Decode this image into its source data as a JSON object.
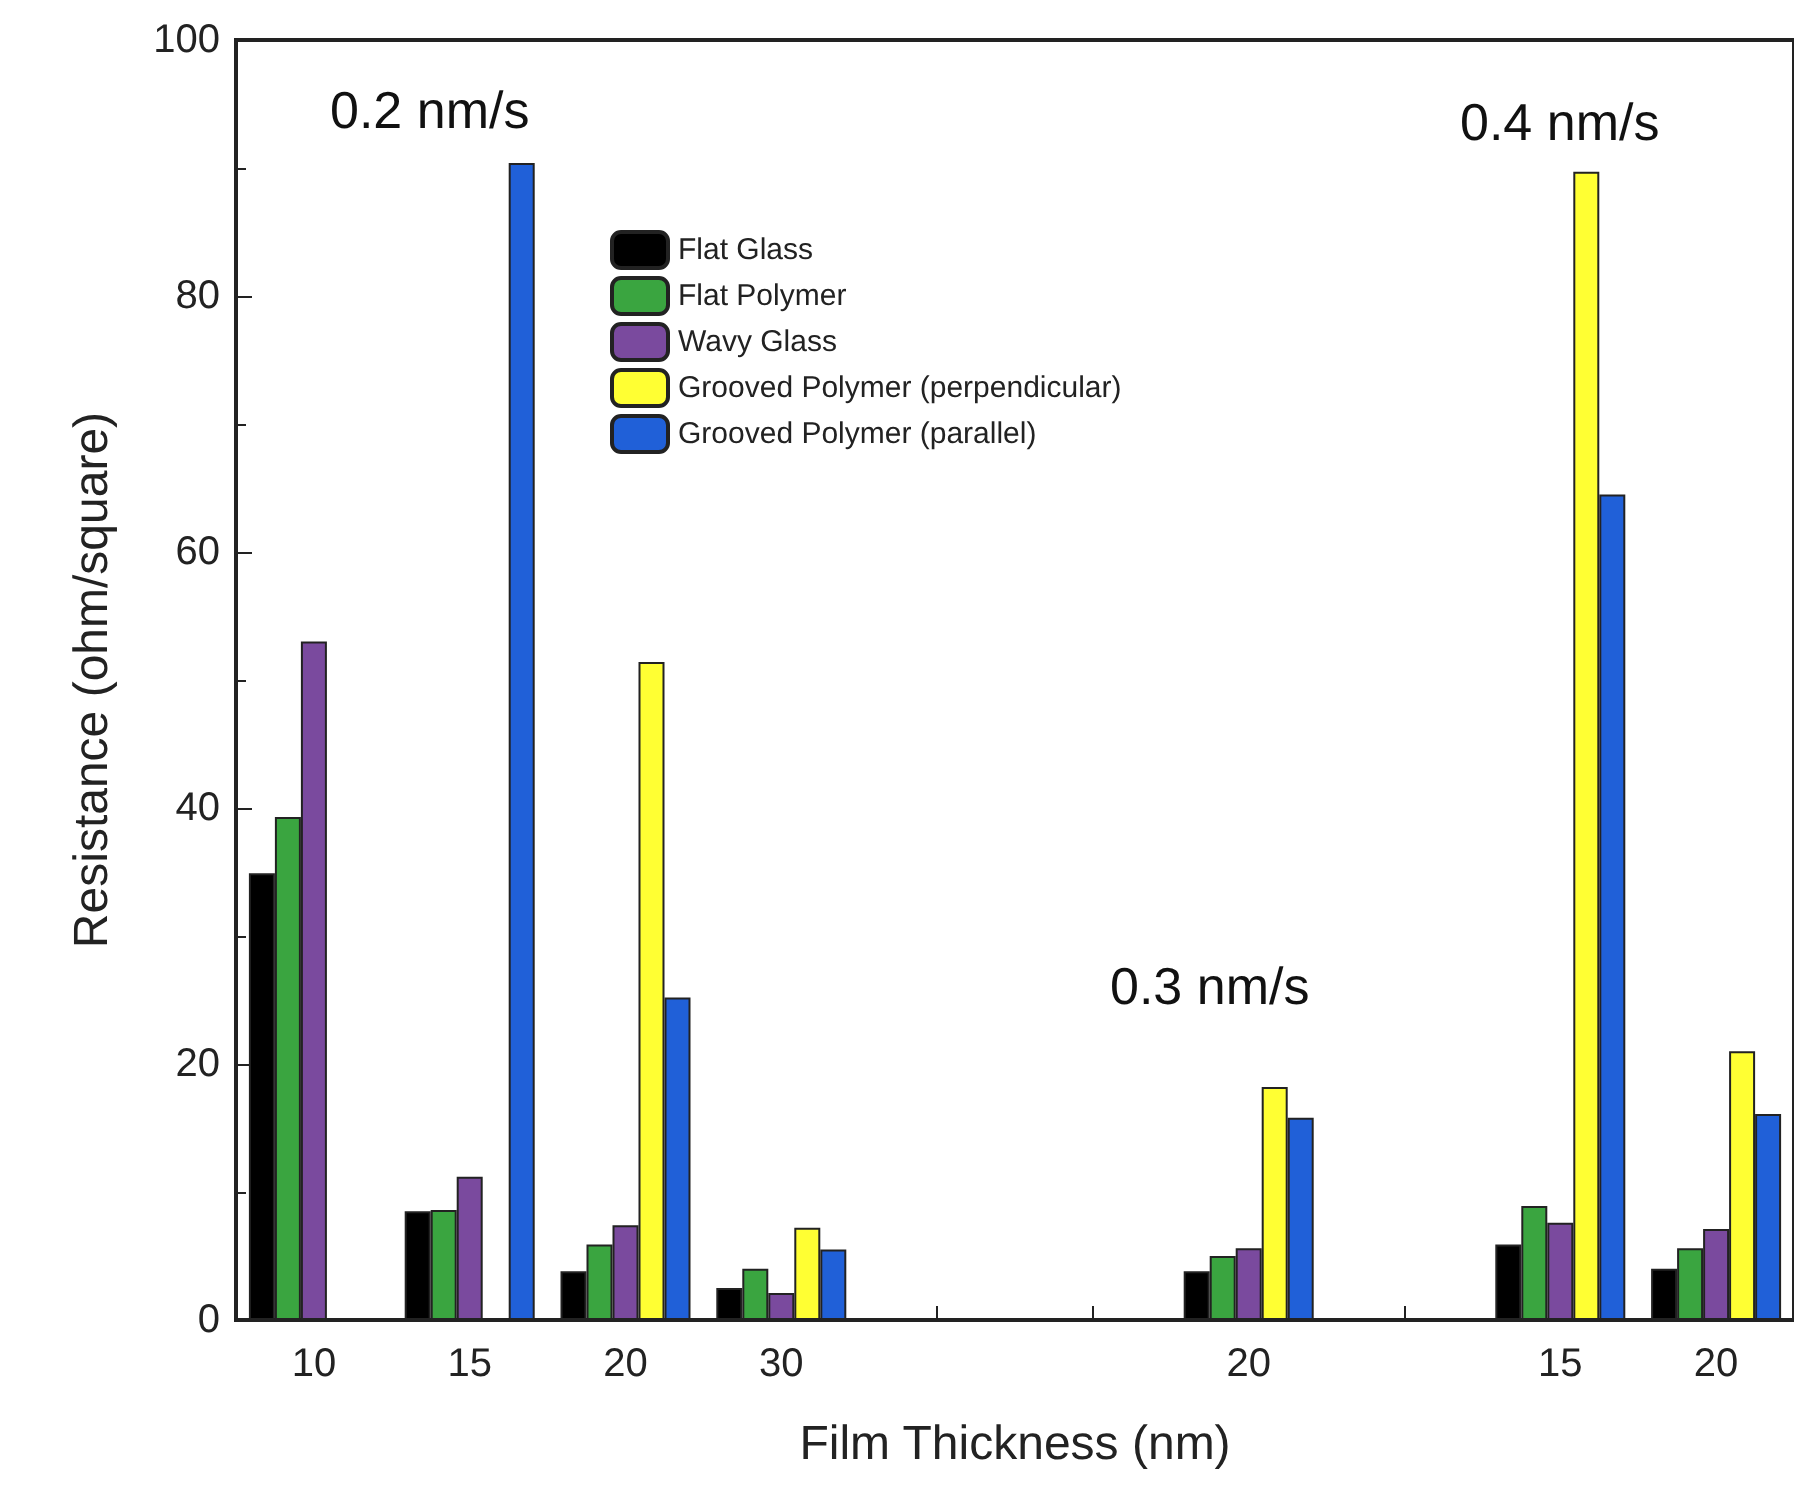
{
  "chart_data": {
    "type": "bar",
    "xlabel": "Film Thickness (nm)",
    "ylabel": "Resistance (ohm/square)",
    "categories": [
      "10",
      "15",
      "20",
      "30",
      null,
      null,
      "20",
      null,
      "15",
      "20"
    ],
    "series": [
      {
        "name": "Flat Glass",
        "color": "#000000",
        "values": [
          34.9,
          8.5,
          3.8,
          2.5,
          null,
          null,
          3.8,
          null,
          5.9,
          4.0
        ]
      },
      {
        "name": "Flat Polymer",
        "color": "#3aa540",
        "values": [
          39.3,
          8.6,
          5.9,
          4.0,
          null,
          null,
          5.0,
          null,
          8.9,
          5.6
        ]
      },
      {
        "name": "Wavy Glass",
        "color": "#7a4a9e",
        "values": [
          53.0,
          11.2,
          7.4,
          2.1,
          null,
          null,
          5.6,
          null,
          7.6,
          7.1
        ]
      },
      {
        "name": "Grooved Polymer (perpendicular)",
        "color": "#ffff33",
        "values": [
          null,
          null,
          51.4,
          7.2,
          null,
          null,
          18.2,
          null,
          89.7,
          21.0
        ]
      },
      {
        "name": "Grooved Polymer (parallel)",
        "color": "#2060d8",
        "values": [
          null,
          90.4,
          25.2,
          5.5,
          null,
          null,
          15.8,
          null,
          64.5,
          16.1
        ]
      }
    ],
    "ylim": [
      0,
      100
    ],
    "yticks": [
      0,
      20,
      40,
      60,
      80,
      100
    ],
    "grid": false,
    "legend": "top",
    "annotations": [
      "0.2 nm/s",
      "0.3 nm/s",
      "0.4 nm/s"
    ]
  }
}
